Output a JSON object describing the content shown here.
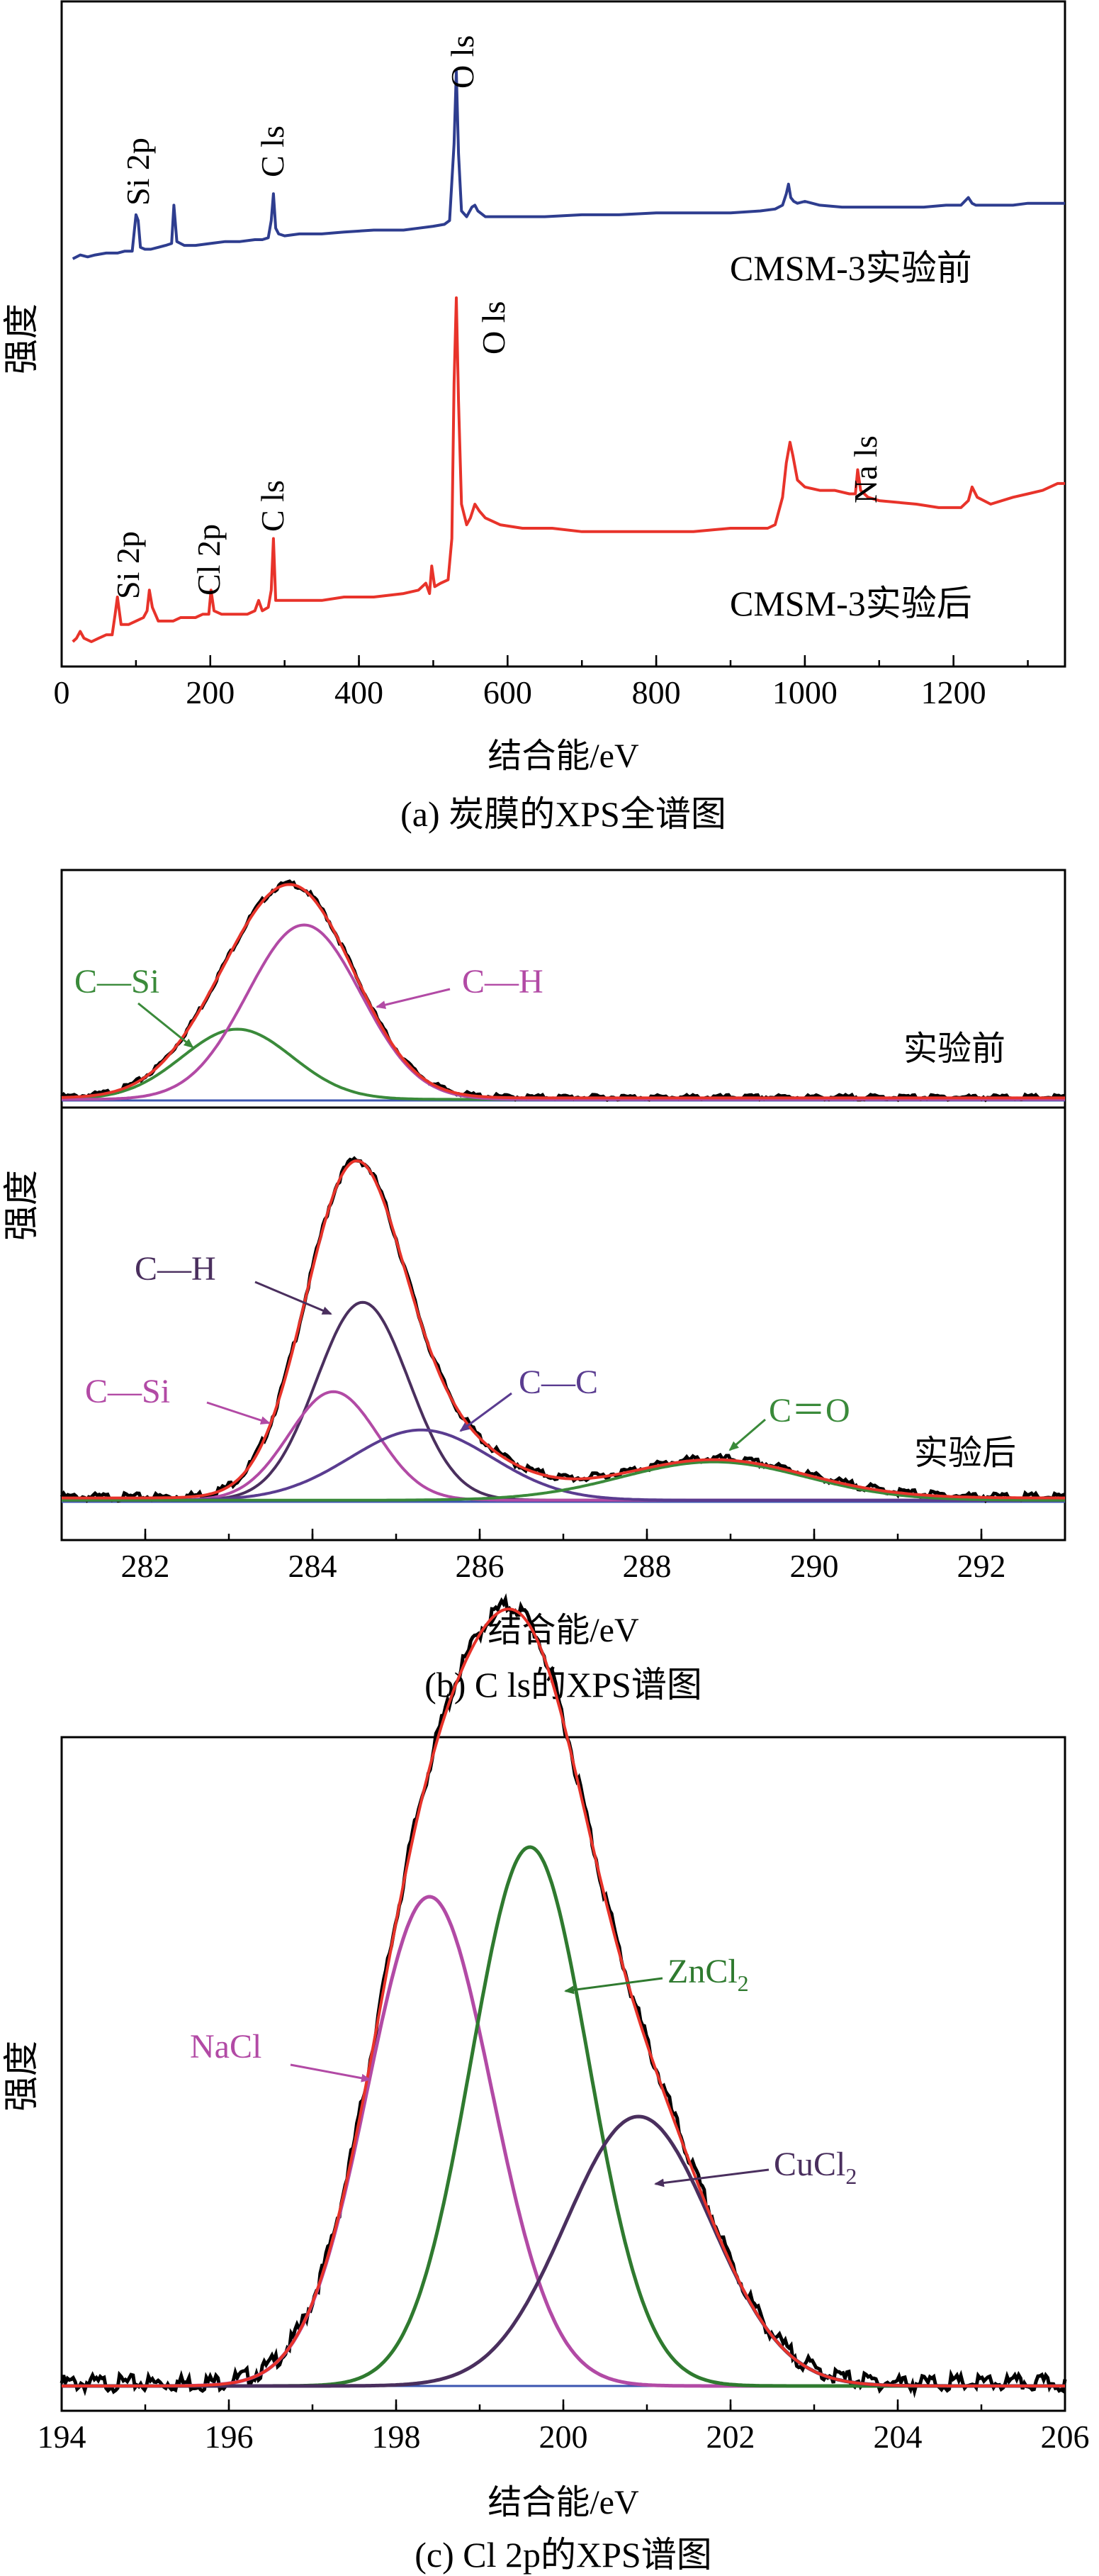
{
  "chart_data": [
    {
      "type": "line",
      "panel": "a",
      "caption": "(a) 炭膜的XPS全谱图",
      "xlabel": "结合能/eV",
      "ylabel": "强度",
      "xlim": [
        0,
        1350
      ],
      "x_ticks": [
        "0",
        "200",
        "400",
        "600",
        "800",
        "1000",
        "1200"
      ],
      "series": [
        {
          "name": "CMSM-3实验前",
          "color": "#2e3d8f",
          "x": [
            15,
            25,
            35,
            45,
            60,
            75,
            85,
            95,
            100,
            103,
            106,
            112,
            120,
            130,
            140,
            148,
            151,
            155,
            165,
            180,
            200,
            220,
            240,
            260,
            270,
            278,
            282,
            285,
            288,
            292,
            300,
            320,
            350,
            380,
            420,
            460,
            480,
            500,
            515,
            522,
            528,
            531,
            534,
            538,
            545,
            552,
            556,
            560,
            570,
            600,
            650,
            700,
            750,
            800,
            850,
            900,
            940,
            960,
            970,
            975,
            978,
            981,
            985,
            990,
            1000,
            1020,
            1050,
            1080,
            1100,
            1130,
            1160,
            1190,
            1210,
            1220,
            1225,
            1230,
            1240,
            1260,
            1280,
            1300,
            1320,
            1340,
            1350
          ],
          "y": [
            0.0,
            0.02,
            0.01,
            0.02,
            0.03,
            0.03,
            0.04,
            0.04,
            0.23,
            0.2,
            0.06,
            0.05,
            0.05,
            0.06,
            0.07,
            0.08,
            0.28,
            0.09,
            0.07,
            0.07,
            0.08,
            0.09,
            0.09,
            0.1,
            0.1,
            0.11,
            0.2,
            0.34,
            0.16,
            0.13,
            0.12,
            0.13,
            0.13,
            0.14,
            0.15,
            0.15,
            0.16,
            0.17,
            0.18,
            0.2,
            0.6,
            0.98,
            0.55,
            0.25,
            0.22,
            0.27,
            0.28,
            0.25,
            0.22,
            0.22,
            0.22,
            0.23,
            0.23,
            0.24,
            0.24,
            0.24,
            0.25,
            0.26,
            0.28,
            0.34,
            0.39,
            0.32,
            0.3,
            0.29,
            0.3,
            0.28,
            0.27,
            0.27,
            0.27,
            0.27,
            0.27,
            0.28,
            0.28,
            0.32,
            0.29,
            0.28,
            0.28,
            0.28,
            0.28,
            0.29,
            0.29,
            0.29,
            0.29
          ]
        },
        {
          "name": "CMSM-3实验后",
          "color": "#e8332a",
          "x": [
            15,
            20,
            25,
            30,
            40,
            50,
            60,
            68,
            72,
            75,
            80,
            90,
            100,
            110,
            115,
            118,
            122,
            130,
            150,
            160,
            170,
            180,
            190,
            198,
            201,
            205,
            215,
            230,
            250,
            260,
            265,
            270,
            278,
            282,
            285,
            288,
            292,
            300,
            320,
            350,
            380,
            420,
            460,
            480,
            490,
            495,
            498,
            502,
            510,
            520,
            525,
            528,
            531,
            534,
            538,
            545,
            550,
            556,
            562,
            570,
            590,
            620,
            660,
            700,
            750,
            800,
            850,
            900,
            930,
            950,
            960,
            970,
            975,
            980,
            984,
            990,
            1000,
            1020,
            1040,
            1060,
            1068,
            1071,
            1075,
            1085,
            1100,
            1150,
            1180,
            1200,
            1210,
            1220,
            1225,
            1232,
            1250,
            1280,
            1300,
            1320,
            1340,
            1350
          ],
          "y": [
            0.0,
            0.01,
            0.03,
            0.01,
            0.0,
            0.01,
            0.02,
            0.02,
            0.08,
            0.13,
            0.05,
            0.05,
            0.06,
            0.07,
            0.09,
            0.15,
            0.1,
            0.06,
            0.06,
            0.07,
            0.07,
            0.07,
            0.08,
            0.08,
            0.15,
            0.09,
            0.08,
            0.08,
            0.08,
            0.09,
            0.12,
            0.09,
            0.1,
            0.15,
            0.3,
            0.12,
            0.12,
            0.12,
            0.12,
            0.12,
            0.13,
            0.13,
            0.14,
            0.15,
            0.17,
            0.14,
            0.22,
            0.16,
            0.17,
            0.18,
            0.3,
            0.75,
            1.0,
            0.7,
            0.4,
            0.34,
            0.36,
            0.4,
            0.38,
            0.36,
            0.34,
            0.33,
            0.33,
            0.32,
            0.32,
            0.32,
            0.32,
            0.33,
            0.33,
            0.33,
            0.34,
            0.42,
            0.52,
            0.58,
            0.54,
            0.47,
            0.45,
            0.44,
            0.44,
            0.43,
            0.43,
            0.5,
            0.44,
            0.42,
            0.41,
            0.4,
            0.39,
            0.39,
            0.39,
            0.41,
            0.45,
            0.42,
            0.4,
            0.42,
            0.43,
            0.44,
            0.46,
            0.46
          ]
        }
      ],
      "annotations": [
        "Si 2p",
        "C ls",
        "O ls",
        "Si 2p",
        "Cl 2p",
        "C ls",
        "O ls",
        "Na ls"
      ]
    },
    {
      "type": "line",
      "panel": "b",
      "caption": "(b) C ls的XPS谱图",
      "xlabel": "结合能/eV",
      "ylabel": "强度",
      "xlim": [
        281,
        293
      ],
      "x_ticks": [
        "282",
        "284",
        "286",
        "288",
        "290",
        "292"
      ],
      "subplots": [
        {
          "label": "实验前",
          "peaks": [
            {
              "name": "C—Si",
              "color": "#3a8a3a",
              "center": 283.1,
              "fwhm": 1.55,
              "height": 0.33
            },
            {
              "name": "C—H",
              "color": "#b24aa5",
              "center": 283.9,
              "fwhm": 1.6,
              "height": 0.82
            }
          ],
          "envelope_color": "#e8332a",
          "raw_color": "#000000"
        },
        {
          "label": "实验后",
          "peaks": [
            {
              "name": "C—H",
              "color": "#4a2f5e",
              "center": 284.6,
              "fwhm": 1.3,
              "height": 0.62
            },
            {
              "name": "C—Si",
              "color": "#b24aa5",
              "center": 284.25,
              "fwhm": 1.25,
              "height": 0.34
            },
            {
              "name": "C—C",
              "color": "#5a3c90",
              "center": 285.3,
              "fwhm": 2.0,
              "height": 0.22
            },
            {
              "name": "C＝O",
              "color": "#3a8a3a",
              "center": 288.8,
              "fwhm": 2.6,
              "height": 0.12
            }
          ],
          "envelope_color": "#e8332a",
          "raw_color": "#000000"
        }
      ]
    },
    {
      "type": "line",
      "panel": "c",
      "caption": "(c) Cl 2p的XPS谱图",
      "xlabel": "结合能/eV",
      "ylabel": "强度",
      "xlim": [
        194,
        206
      ],
      "x_ticks": [
        "194",
        "196",
        "198",
        "200",
        "202",
        "204",
        "206"
      ],
      "peaks": [
        {
          "name": "NaCl",
          "color": "#b24aa5",
          "center": 198.4,
          "fwhm": 1.75,
          "height": 0.69
        },
        {
          "name": "ZnCl",
          "subscript": "2",
          "color": "#2f7a2f",
          "center": 199.6,
          "fwhm": 1.65,
          "height": 0.76
        },
        {
          "name": "CuCl",
          "subscript": "2",
          "color": "#4a2f5e",
          "center": 200.9,
          "fwhm": 2.05,
          "height": 0.38
        }
      ],
      "envelope_color": "#e8332a",
      "raw_color": "#000000"
    }
  ]
}
